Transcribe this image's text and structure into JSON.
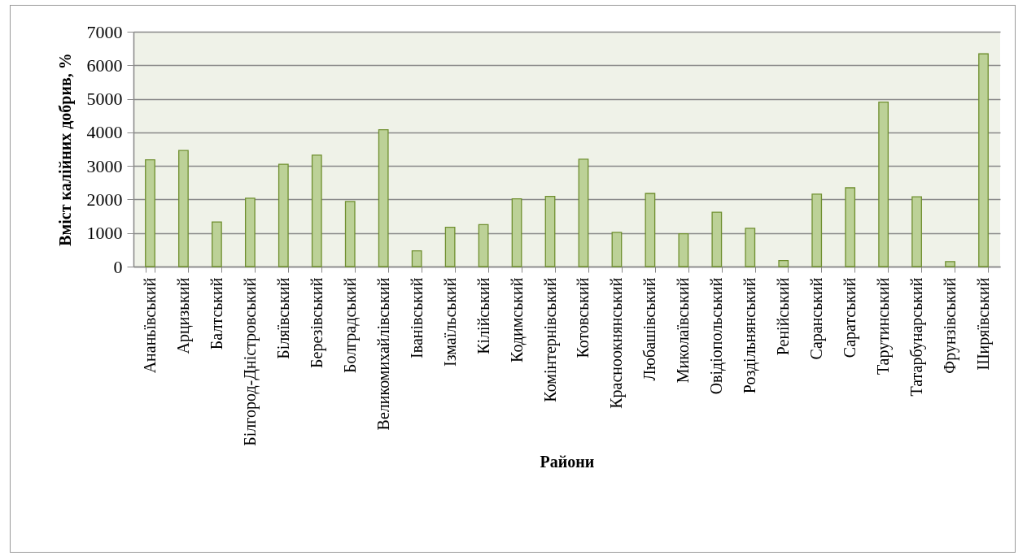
{
  "chart_data": {
    "type": "bar",
    "xlabel": "Райони",
    "ylabel": "Вміст калійних добрив, %",
    "categories": [
      "Ананьївський",
      "Арцизький",
      "Балтський",
      "Білгород-Дністровський",
      "Біляївський",
      "Березівський",
      "Болградський",
      "Великомихайлівський",
      "Іванівський",
      "Ізмаїльський",
      "Кілійський",
      "Кодимський",
      "Комінтернівський",
      "Котовський",
      "Красноокнянський",
      "Любашівський",
      "Миколаївський",
      "Овідіопольський",
      "Роздільнянський",
      "Ренійський",
      "Саранський",
      "Саратський",
      "Тарутинський",
      "Татарбунарський",
      "Фрунзівський",
      "Ширяївський"
    ],
    "values": [
      3180,
      3460,
      1330,
      2040,
      3050,
      3320,
      1940,
      4080,
      470,
      1170,
      1250,
      2020,
      2090,
      3200,
      1020,
      2180,
      980,
      1620,
      1140,
      180,
      2160,
      2350,
      4900,
      2080,
      150,
      6340
    ],
    "color": "#bcd197",
    "ylim": [
      0,
      7000
    ],
    "yticks": [
      0,
      1000,
      2000,
      3000,
      4000,
      5000,
      6000,
      7000
    ],
    "grid": "y"
  }
}
